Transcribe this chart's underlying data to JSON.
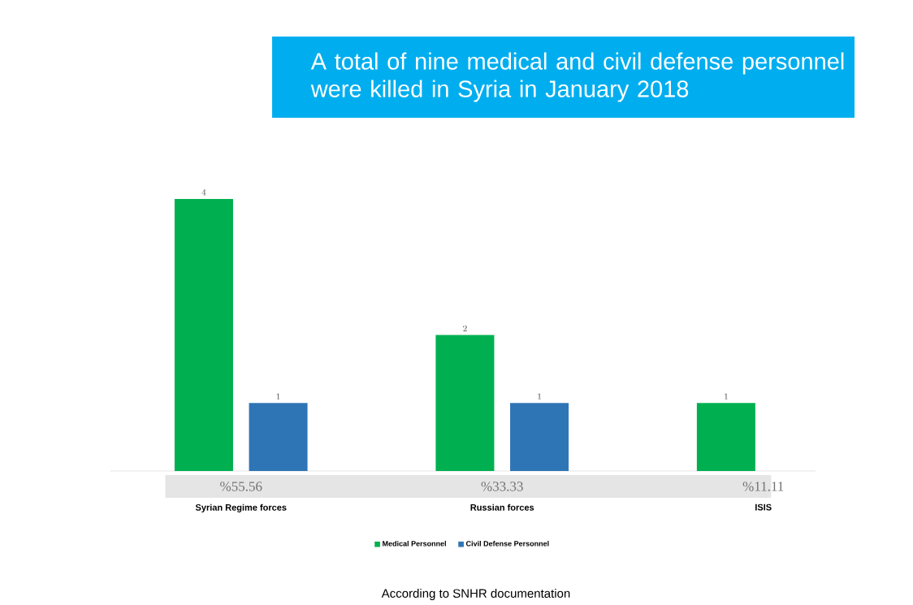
{
  "chart_data": {
    "type": "bar",
    "title": "A total of nine medical and civil defense personnel were killed in Syria in January 2018",
    "categories": [
      "Syrian Regime forces",
      "Russian forces",
      "ISIS"
    ],
    "series": [
      {
        "name": "Medical Personnel",
        "color": "#00b050",
        "values": [
          4,
          2,
          1
        ]
      },
      {
        "name": "Civil Defense Personnel",
        "color": "#2e75b6",
        "values": [
          1,
          1,
          null
        ]
      }
    ],
    "data_labels": true,
    "legend": "bottom",
    "annotations": [
      "%55.56",
      "%33.33",
      "%11.11",
      "According to SNHR documentation"
    ]
  }
}
